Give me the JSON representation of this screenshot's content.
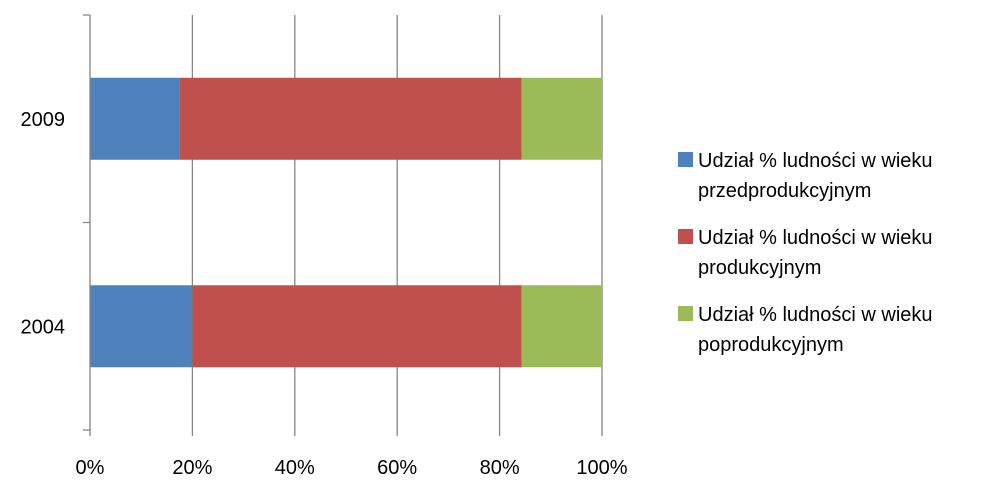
{
  "chart_data": {
    "type": "bar",
    "orientation": "horizontal",
    "stacked": "percent",
    "title": "",
    "xlabel": "",
    "ylabel": "",
    "categories": [
      "2009",
      "2004"
    ],
    "x_ticks": [
      "0%",
      "20%",
      "40%",
      "60%",
      "80%",
      "100%"
    ],
    "xlim": [
      0,
      100
    ],
    "grid": "vertical",
    "legend_position": "right",
    "series": [
      {
        "name": "Udział % ludności w wieku przedprodukcyjnym",
        "color": "#4f81bd",
        "values": [
          17.5,
          20.0
        ]
      },
      {
        "name": "Udział % ludności w wieku produkcyjnym",
        "color": "#c0504d",
        "values": [
          66.8,
          64.3
        ]
      },
      {
        "name": "Udział % ludności w wieku poprodukcyjnym",
        "color": "#9bbb59",
        "values": [
          15.7,
          15.7
        ]
      }
    ]
  }
}
